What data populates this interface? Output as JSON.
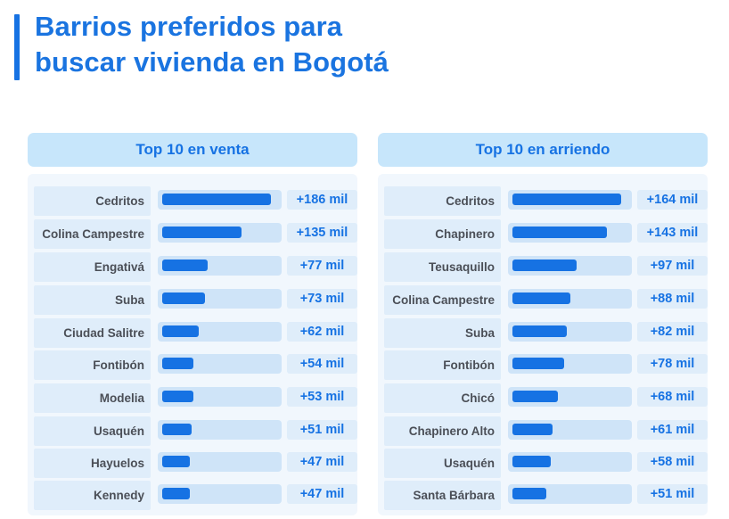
{
  "title": {
    "line1": "Barrios preferidos para",
    "line2": "buscar vivienda en Bogotá"
  },
  "chart_data": [
    {
      "type": "bar",
      "orientation": "horizontal",
      "title": "Top 10 en venta",
      "categories": [
        "Cedritos",
        "Colina Campestre",
        "Engativá",
        "Suba",
        "Ciudad Salitre",
        "Fontibón",
        "Modelia",
        "Usaquén",
        "Hayuelos",
        "Kennedy"
      ],
      "values": [
        186,
        135,
        77,
        73,
        62,
        54,
        53,
        51,
        47,
        47
      ],
      "value_labels": [
        "+186 mil",
        "+135 mil",
        "+77 mil",
        "+73 mil",
        "+62 mil",
        "+54 mil",
        "+53 mil",
        "+51 mil",
        "+47 mil",
        "+47 mil"
      ],
      "unit": "mil"
    },
    {
      "type": "bar",
      "orientation": "horizontal",
      "title": "Top 10 en arriendo",
      "categories": [
        "Cedritos",
        "Chapinero",
        "Teusaquillo",
        "Colina Campestre",
        "Suba",
        "Fontibón",
        "Chicó",
        "Chapinero Alto",
        "Usaquén",
        "Santa Bárbara"
      ],
      "values": [
        164,
        143,
        97,
        88,
        82,
        78,
        68,
        61,
        58,
        51
      ],
      "value_labels": [
        "+164 mil",
        "+143 mil",
        "+97 mil",
        "+88 mil",
        "+82 mil",
        "+78 mil",
        "+68 mil",
        "+61 mil",
        "+58 mil",
        "+51 mil"
      ],
      "unit": "mil"
    }
  ],
  "colors": {
    "accent": "#1672e3",
    "header_bg": "#c7e6fb",
    "panel_bg": "#f1f7fd",
    "label_bg": "#dfedfa",
    "track_bg": "#cfe4f8",
    "label_text": "#4b4f57"
  }
}
